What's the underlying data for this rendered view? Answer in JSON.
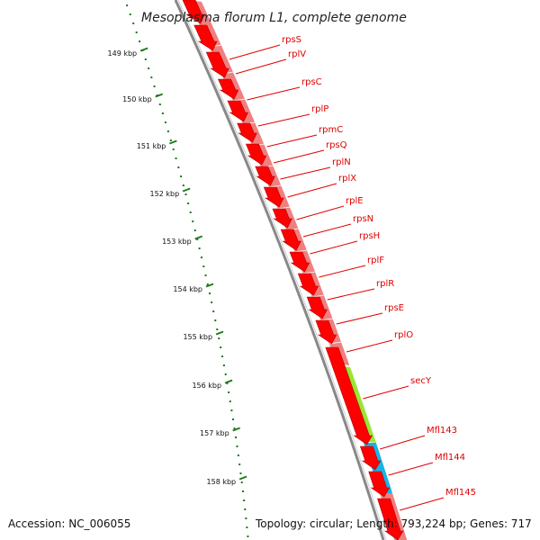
{
  "title": "Mesoplasma florum L1, complete genome",
  "accession_label": "Accession: NC_006055",
  "topology_label": "Topology: circular; Length: 793,224 bp; Genes: 717",
  "axis": {
    "ticks": [
      "149 kbp",
      "150 kbp",
      "151 kbp",
      "152 kbp",
      "153 kbp",
      "154 kbp",
      "155 kbp",
      "156 kbp",
      "157 kbp",
      "158 kbp"
    ],
    "tick_color": "#1b7a1b"
  },
  "colors": {
    "cds": "#ff0000",
    "cds_outline": "#b00000",
    "lane": "#f08080",
    "secY": "#99e633",
    "mfl": "#1ab2e6",
    "backbone": "#888888",
    "label": "#e00000"
  },
  "genes": [
    {
      "name": "rpsS",
      "color_key": "lane"
    },
    {
      "name": "rplV",
      "color_key": "lane"
    },
    {
      "name": "rpsC",
      "color_key": "lane"
    },
    {
      "name": "rplP",
      "color_key": "lane"
    },
    {
      "name": "rpmC",
      "color_key": "lane"
    },
    {
      "name": "rpsQ",
      "color_key": "lane"
    },
    {
      "name": "rplN",
      "color_key": "lane"
    },
    {
      "name": "rplX",
      "color_key": "lane"
    },
    {
      "name": "rplE",
      "color_key": "lane"
    },
    {
      "name": "rpsN",
      "color_key": "lane"
    },
    {
      "name": "rpsH",
      "color_key": "lane"
    },
    {
      "name": "rplF",
      "color_key": "lane"
    },
    {
      "name": "rplR",
      "color_key": "lane"
    },
    {
      "name": "rpsE",
      "color_key": "lane"
    },
    {
      "name": "rplO",
      "color_key": "lane"
    },
    {
      "name": "secY",
      "color_key": "secY"
    },
    {
      "name": "Mfl143",
      "color_key": "mfl"
    },
    {
      "name": "Mfl144",
      "color_key": "mfl"
    },
    {
      "name": "Mfl145",
      "color_key": "mfl"
    }
  ]
}
